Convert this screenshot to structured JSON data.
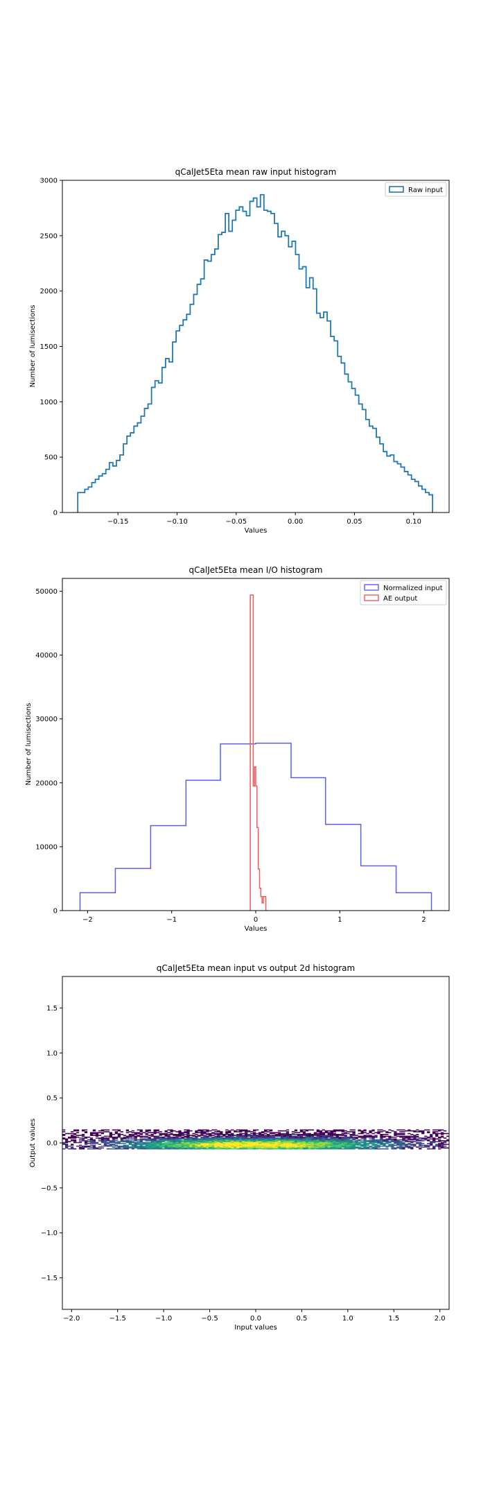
{
  "chart_data": [
    {
      "type": "histogram",
      "title": "qCalJet5Eta mean raw input histogram",
      "xlabel": "Values",
      "ylabel": "Number of lumisections",
      "xlim": [
        -0.197,
        0.13
      ],
      "ylim": [
        0,
        3000
      ],
      "xticks": [
        -0.15,
        -0.1,
        -0.05,
        0.0,
        0.05,
        0.1
      ],
      "xtick_labels": [
        "−0.15",
        "−0.10",
        "−0.05",
        "0.00",
        "0.05",
        "0.10"
      ],
      "yticks": [
        0,
        500,
        1000,
        1500,
        2000,
        2500,
        3000
      ],
      "ytick_labels": [
        "0",
        "500",
        "1000",
        "1500",
        "2000",
        "2500",
        "3000"
      ],
      "legend": {
        "placement": "upper right",
        "entries": [
          {
            "label": "Raw input",
            "color": "#1f77b4"
          }
        ]
      },
      "series": [
        {
          "name": "Raw input",
          "color": "#1f77b4",
          "x_start": -0.184,
          "x_end": 0.116,
          "values": [
            180,
            180,
            210,
            230,
            270,
            300,
            330,
            350,
            390,
            450,
            420,
            470,
            520,
            620,
            690,
            720,
            780,
            810,
            870,
            940,
            980,
            1130,
            1190,
            1170,
            1310,
            1390,
            1360,
            1540,
            1640,
            1690,
            1740,
            1790,
            1880,
            1970,
            2060,
            2110,
            2280,
            2270,
            2330,
            2380,
            2510,
            2530,
            2700,
            2540,
            2640,
            2730,
            2760,
            2720,
            2680,
            2810,
            2840,
            2760,
            2870,
            2730,
            2720,
            2700,
            2610,
            2490,
            2540,
            2500,
            2400,
            2450,
            2330,
            2200,
            2220,
            2030,
            2120,
            2020,
            1800,
            1760,
            1810,
            1730,
            1590,
            1550,
            1410,
            1350,
            1250,
            1180,
            1120,
            1060,
            980,
            930,
            840,
            780,
            760,
            680,
            620,
            550,
            510,
            520,
            460,
            440,
            410,
            370,
            340,
            300,
            280,
            240,
            210,
            180,
            160
          ]
        }
      ]
    },
    {
      "type": "histogram",
      "title": "qCalJet5Eta mean I/O histogram",
      "xlabel": "Values",
      "ylabel": "Number of lumisections",
      "xlim": [
        -2.3,
        2.3
      ],
      "ylim": [
        0,
        52000
      ],
      "xticks": [
        -2,
        -1,
        0,
        1,
        2
      ],
      "xtick_labels": [
        "−2",
        "−1",
        "0",
        "1",
        "2"
      ],
      "yticks": [
        0,
        10000,
        20000,
        30000,
        40000,
        50000
      ],
      "ytick_labels": [
        "0",
        "10000",
        "20000",
        "30000",
        "40000",
        "50000"
      ],
      "legend": {
        "placement": "upper right",
        "entries": [
          {
            "label": "Normalized input",
            "color": "#5c5cf0"
          },
          {
            "label": "AE output",
            "color": "#f05c5c"
          }
        ]
      },
      "series": [
        {
          "name": "Normalized input",
          "color": "#5c5cf0",
          "bin_edges": [
            -2.09,
            -1.67,
            -1.25,
            -0.83,
            -0.42,
            0.0,
            0.42,
            0.83,
            1.25,
            1.67,
            2.09
          ],
          "values": [
            2800,
            6600,
            13300,
            20400,
            26100,
            26200,
            20800,
            13500,
            7000,
            2800
          ]
        },
        {
          "name": "AE output",
          "color": "#f05c5c",
          "bin_edges": [
            -0.065,
            -0.045,
            -0.03,
            -0.015,
            0.0,
            0.015,
            0.03,
            0.045,
            0.06,
            0.075,
            0.09,
            0.105,
            0.12,
            0.135
          ],
          "values": [
            49400,
            49400,
            19500,
            22500,
            19500,
            13000,
            6500,
            3500,
            2200,
            1200,
            2200,
            2200,
            0
          ]
        }
      ]
    },
    {
      "type": "heatmap",
      "title": "qCalJet5Eta mean input vs output 2d histogram",
      "xlabel": "Input values",
      "ylabel": "Output values",
      "xlim": [
        -2.1,
        2.1
      ],
      "ylim": [
        -1.85,
        1.85
      ],
      "xticks": [
        -2.0,
        -1.5,
        -1.0,
        -0.5,
        0.0,
        0.5,
        1.0,
        1.5,
        2.0
      ],
      "xtick_labels": [
        "−2.0",
        "−1.5",
        "−1.0",
        "−0.5",
        "0.0",
        "0.5",
        "1.0",
        "1.5",
        "2.0"
      ],
      "yticks": [
        -1.5,
        -1.0,
        -0.5,
        0.0,
        0.5,
        1.0,
        1.5
      ],
      "ytick_labels": [
        "−1.5",
        "−1.0",
        "−0.5",
        "0.0",
        "0.5",
        "1.0",
        "1.5"
      ],
      "colormap": "viridis",
      "band": {
        "y_min": -0.07,
        "y_max": 0.15,
        "y_peak": -0.02,
        "x_min": -2.1,
        "x_max": 2.1
      }
    }
  ]
}
